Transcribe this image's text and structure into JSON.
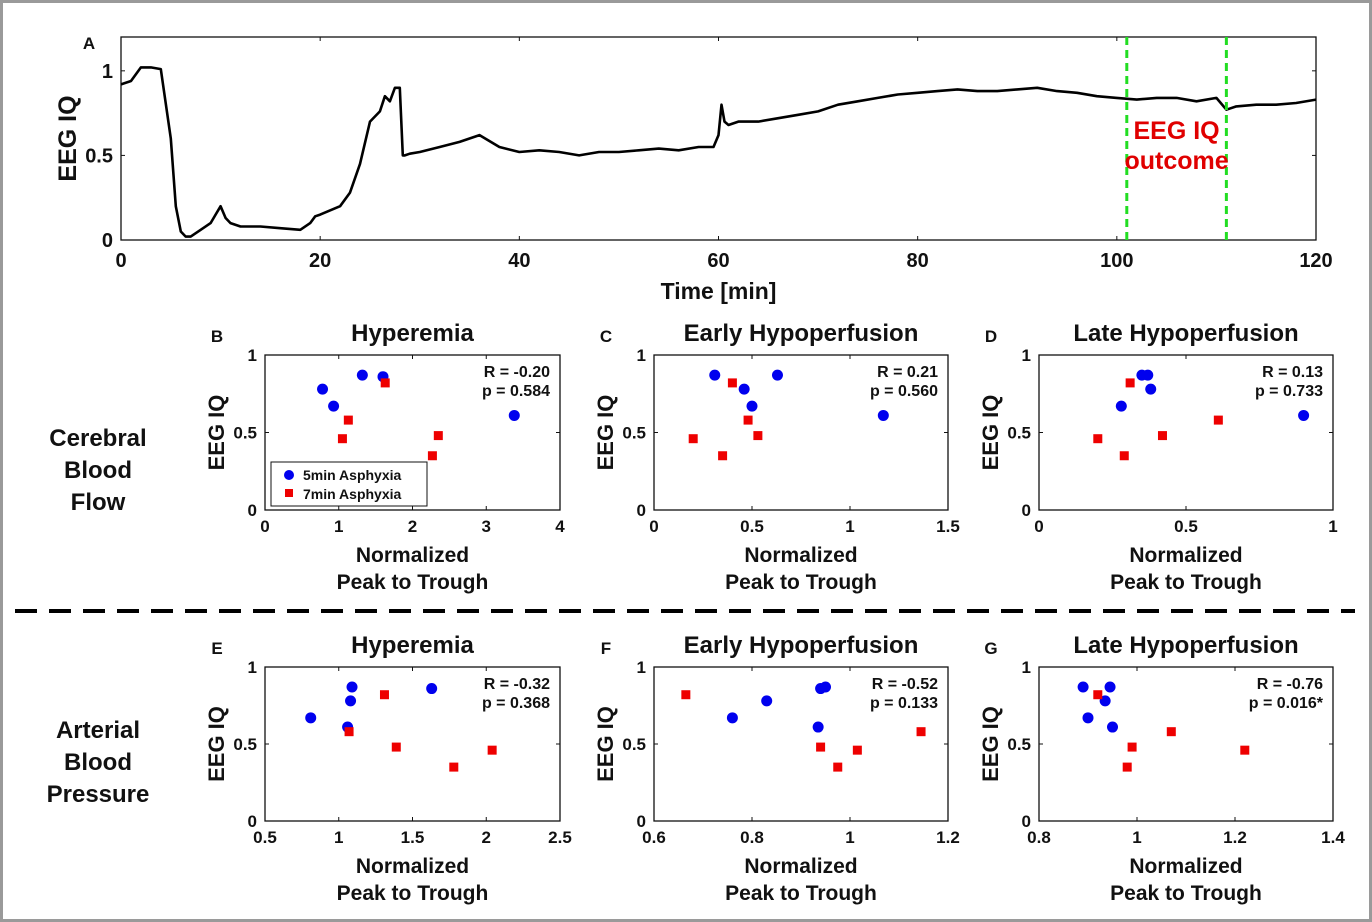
{
  "chart_data": [
    {
      "panel": "A",
      "type": "line",
      "ylabel": "EEG IQ",
      "xlabel": "Time [min]",
      "xlim": [
        0,
        120
      ],
      "ylim": [
        0,
        1.2
      ],
      "xticks": [
        "0",
        "20",
        "40",
        "60",
        "80",
        "100",
        "120"
      ],
      "yticks": [
        "0",
        "0.5",
        "1"
      ],
      "annotation": [
        "EEG IQ",
        "outcome"
      ],
      "annotation_color": "#e00000",
      "marker_lines_x": [
        101,
        111
      ],
      "marker_line_color": "#22dd22",
      "series": [
        {
          "color": "#000000",
          "x": [
            0,
            1,
            2,
            3,
            4,
            5,
            5.5,
            6,
            6.5,
            7,
            8,
            9,
            9.5,
            10,
            10.5,
            11,
            12,
            14,
            16,
            18,
            19,
            19.5,
            20,
            22,
            23,
            24,
            25,
            26,
            26.5,
            27,
            27.5,
            28,
            28.3,
            28.5,
            29,
            30,
            32,
            34,
            36,
            38,
            40,
            42,
            44,
            46,
            48,
            50,
            52,
            54,
            56,
            58,
            59.5,
            60,
            60.3,
            60.6,
            61,
            62,
            64,
            66,
            68,
            70,
            72,
            74,
            76,
            78,
            80,
            82,
            84,
            86,
            88,
            90,
            92,
            94,
            96,
            98,
            100,
            102,
            104,
            106,
            108,
            110,
            111,
            112,
            114,
            116,
            118,
            120
          ],
          "y": [
            0.92,
            0.94,
            1.02,
            1.02,
            1.01,
            0.6,
            0.2,
            0.05,
            0.02,
            0.02,
            0.06,
            0.1,
            0.15,
            0.2,
            0.13,
            0.1,
            0.08,
            0.08,
            0.07,
            0.06,
            0.1,
            0.14,
            0.15,
            0.2,
            0.28,
            0.45,
            0.7,
            0.76,
            0.85,
            0.82,
            0.9,
            0.9,
            0.5,
            0.5,
            0.51,
            0.52,
            0.55,
            0.58,
            0.62,
            0.55,
            0.52,
            0.53,
            0.52,
            0.5,
            0.52,
            0.52,
            0.53,
            0.54,
            0.53,
            0.55,
            0.55,
            0.62,
            0.8,
            0.7,
            0.68,
            0.7,
            0.7,
            0.72,
            0.74,
            0.76,
            0.8,
            0.82,
            0.84,
            0.86,
            0.87,
            0.88,
            0.89,
            0.88,
            0.88,
            0.89,
            0.9,
            0.88,
            0.87,
            0.85,
            0.84,
            0.83,
            0.84,
            0.84,
            0.82,
            0.84,
            0.77,
            0.79,
            0.8,
            0.8,
            0.81,
            0.83
          ]
        }
      ]
    },
    {
      "panel": "B",
      "row": "Cerebral Blood Flow",
      "type": "scatter",
      "title": "Hyperemia",
      "ylabel": "EEG IQ",
      "xlabel": [
        "Normalized",
        "Peak to Trough"
      ],
      "xlim": [
        0,
        4
      ],
      "ylim": [
        0,
        1
      ],
      "xticks": [
        "0",
        "1",
        "2",
        "3",
        "4"
      ],
      "yticks": [
        "0",
        "0.5",
        "1"
      ],
      "stats": [
        "R = -0.20",
        "p = 0.584"
      ],
      "legend": [
        "5min Asphyxia",
        "7min Asphyxia"
      ],
      "series": [
        {
          "name": "5min Asphyxia",
          "color": "#0000ee",
          "marker": "circle",
          "x": [
            0.78,
            0.93,
            1.32,
            1.6,
            3.38
          ],
          "y": [
            0.78,
            0.67,
            0.87,
            0.86,
            0.61
          ]
        },
        {
          "name": "7min Asphyxia",
          "color": "#ee0000",
          "marker": "square",
          "x": [
            1.05,
            1.13,
            1.63,
            2.27,
            2.35
          ],
          "y": [
            0.46,
            0.58,
            0.82,
            0.35,
            0.48
          ]
        }
      ]
    },
    {
      "panel": "C",
      "row": "Cerebral Blood Flow",
      "type": "scatter",
      "title": "Early Hypoperfusion",
      "ylabel": "EEG IQ",
      "xlabel": [
        "Normalized",
        "Peak to Trough"
      ],
      "xlim": [
        0,
        1.5
      ],
      "ylim": [
        0,
        1
      ],
      "xticks": [
        "0",
        "0.5",
        "1",
        "1.5"
      ],
      "yticks": [
        "0",
        "0.5",
        "1"
      ],
      "stats": [
        "R = 0.21",
        "p = 0.560"
      ],
      "series": [
        {
          "name": "5min Asphyxia",
          "color": "#0000ee",
          "marker": "circle",
          "x": [
            0.31,
            0.46,
            0.5,
            0.63,
            1.17
          ],
          "y": [
            0.87,
            0.78,
            0.67,
            0.87,
            0.61
          ]
        },
        {
          "name": "7min Asphyxia",
          "color": "#ee0000",
          "marker": "square",
          "x": [
            0.2,
            0.35,
            0.4,
            0.48,
            0.53
          ],
          "y": [
            0.46,
            0.35,
            0.82,
            0.58,
            0.48
          ]
        }
      ]
    },
    {
      "panel": "D",
      "row": "Cerebral Blood Flow",
      "type": "scatter",
      "title": "Late Hypoperfusion",
      "ylabel": "EEG IQ",
      "xlabel": [
        "Normalized",
        "Peak to Trough"
      ],
      "xlim": [
        0,
        1
      ],
      "ylim": [
        0,
        1
      ],
      "xticks": [
        "0",
        "0.5",
        "1"
      ],
      "yticks": [
        "0",
        "0.5",
        "1"
      ],
      "stats": [
        "R = 0.13",
        "p = 0.733"
      ],
      "series": [
        {
          "name": "5min Asphyxia",
          "color": "#0000ee",
          "marker": "circle",
          "x": [
            0.28,
            0.35,
            0.37,
            0.38,
            0.9
          ],
          "y": [
            0.67,
            0.87,
            0.87,
            0.78,
            0.61
          ]
        },
        {
          "name": "7min Asphyxia",
          "color": "#ee0000",
          "marker": "square",
          "x": [
            0.2,
            0.29,
            0.31,
            0.42,
            0.61
          ],
          "y": [
            0.46,
            0.35,
            0.82,
            0.48,
            0.58
          ]
        }
      ]
    },
    {
      "panel": "E",
      "row": "Arterial Blood Pressure",
      "type": "scatter",
      "title": "Hyperemia",
      "ylabel": "EEG IQ",
      "xlabel": [
        "Normalized",
        "Peak to Trough"
      ],
      "xlim": [
        0.5,
        2.5
      ],
      "ylim": [
        0,
        1
      ],
      "xticks": [
        "0.5",
        "1",
        "1.5",
        "2",
        "2.5"
      ],
      "yticks": [
        "0",
        "0.5",
        "1"
      ],
      "stats": [
        "R = -0.32",
        "p = 0.368"
      ],
      "series": [
        {
          "name": "5min Asphyxia",
          "color": "#0000ee",
          "marker": "circle",
          "x": [
            0.81,
            1.06,
            1.08,
            1.09,
            1.63
          ],
          "y": [
            0.67,
            0.61,
            0.78,
            0.87,
            0.86
          ]
        },
        {
          "name": "7min Asphyxia",
          "color": "#ee0000",
          "marker": "square",
          "x": [
            1.07,
            1.31,
            1.39,
            1.78,
            2.04
          ],
          "y": [
            0.58,
            0.82,
            0.48,
            0.35,
            0.46
          ]
        }
      ]
    },
    {
      "panel": "F",
      "row": "Arterial Blood Pressure",
      "type": "scatter",
      "title": "Early Hypoperfusion",
      "ylabel": "EEG IQ",
      "xlabel": [
        "Normalized",
        "Peak to Trough"
      ],
      "xlim": [
        0.6,
        1.2
      ],
      "ylim": [
        0,
        1
      ],
      "xticks": [
        "0.6",
        "0.8",
        "1",
        "1.2"
      ],
      "yticks": [
        "0",
        "0.5",
        "1"
      ],
      "stats": [
        "R = -0.52",
        "p = 0.133"
      ],
      "series": [
        {
          "name": "5min Asphyxia",
          "color": "#0000ee",
          "marker": "circle",
          "x": [
            0.76,
            0.83,
            0.935,
            0.94,
            0.95
          ],
          "y": [
            0.67,
            0.78,
            0.61,
            0.86,
            0.87
          ]
        },
        {
          "name": "7min Asphyxia",
          "color": "#ee0000",
          "marker": "square",
          "x": [
            0.665,
            0.94,
            0.975,
            1.015,
            1.145
          ],
          "y": [
            0.82,
            0.48,
            0.35,
            0.46,
            0.58
          ]
        }
      ]
    },
    {
      "panel": "G",
      "row": "Arterial Blood Pressure",
      "type": "scatter",
      "title": "Late Hypoperfusion",
      "ylabel": "EEG IQ",
      "xlabel": [
        "Normalized",
        "Peak to Trough"
      ],
      "xlim": [
        0.8,
        1.4
      ],
      "ylim": [
        0,
        1
      ],
      "xticks": [
        "0.8",
        "1",
        "1.2",
        "1.4"
      ],
      "yticks": [
        "0",
        "0.5",
        "1"
      ],
      "stats": [
        "R = -0.76",
        "p = 0.016*"
      ],
      "series": [
        {
          "name": "5min Asphyxia",
          "color": "#0000ee",
          "marker": "circle",
          "x": [
            0.89,
            0.9,
            0.935,
            0.945,
            0.95
          ],
          "y": [
            0.87,
            0.67,
            0.78,
            0.87,
            0.61
          ]
        },
        {
          "name": "7min Asphyxia",
          "color": "#ee0000",
          "marker": "square",
          "x": [
            0.92,
            0.98,
            0.99,
            1.07,
            1.22
          ],
          "y": [
            0.82,
            0.35,
            0.48,
            0.58,
            0.46
          ]
        }
      ]
    }
  ],
  "row_labels": {
    "cbf": [
      "Cerebral",
      "Blood",
      "Flow"
    ],
    "abp": [
      "Arterial",
      "Blood",
      "Pressure"
    ]
  },
  "colors": {
    "axis": "#111111",
    "frame": "#9a9a9a",
    "separator": "#000000"
  }
}
